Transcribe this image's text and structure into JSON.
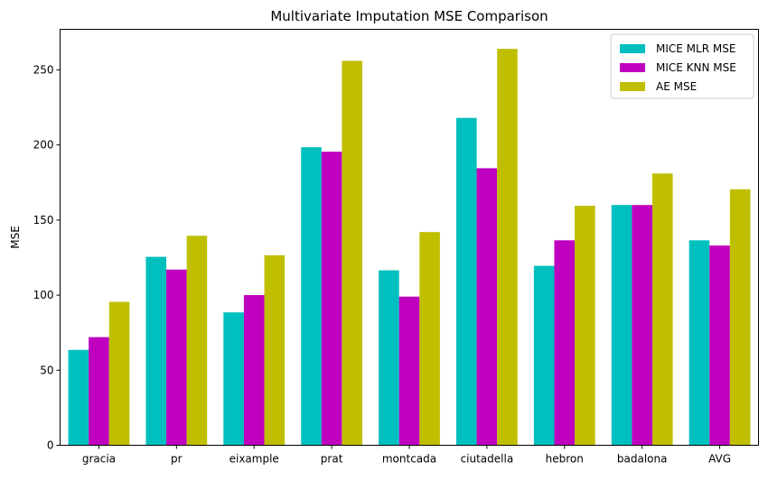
{
  "chart_data": {
    "type": "bar",
    "title": "Multivariate Imputation MSE Comparison",
    "xlabel": "",
    "ylabel": "MSE",
    "categories": [
      "gracia",
      "pr",
      "eixample",
      "prat",
      "montcada",
      "ciutadella",
      "hebron",
      "badalona",
      "AVG"
    ],
    "ylim": [
      0,
      277
    ],
    "yticks": [
      0,
      50,
      100,
      150,
      200,
      250
    ],
    "grid": false,
    "legend_position": "upper right",
    "series": [
      {
        "name": "MICE MLR MSE",
        "color": "#00bfbf",
        "values": [
          63.5,
          125.5,
          88.5,
          198.5,
          116.5,
          218,
          119.5,
          160,
          136.5
        ]
      },
      {
        "name": "MICE KNN MSE",
        "color": "#bf00bf",
        "values": [
          72,
          117,
          100,
          195.5,
          99,
          184.5,
          136.5,
          160,
          133
        ]
      },
      {
        "name": "AE MSE",
        "color": "#bfbf00",
        "values": [
          95.5,
          139.5,
          126.5,
          256,
          142,
          264,
          159.5,
          181,
          170.5
        ]
      }
    ]
  }
}
